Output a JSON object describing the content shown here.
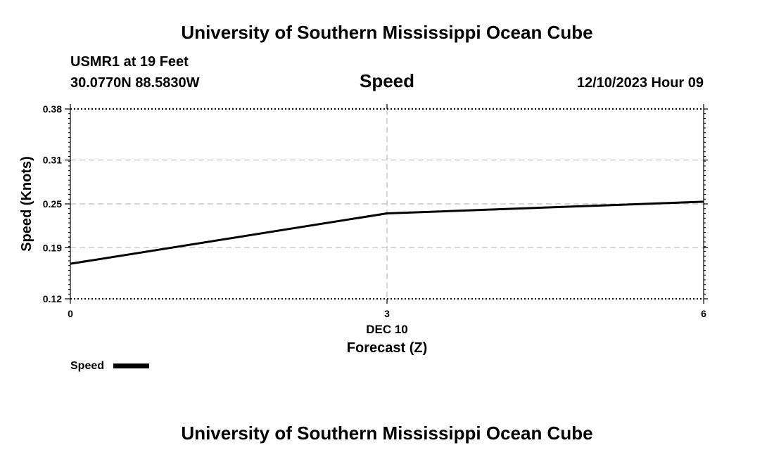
{
  "header": {
    "title": "University of Southern Mississippi Ocean Cube",
    "station": "USMR1 at 19 Feet",
    "location": "30.0770N  88.5830W",
    "plot_title": "Speed",
    "timestamp": "12/10/2023 Hour 09"
  },
  "footer": {
    "title": "University of Southern Mississippi Ocean Cube"
  },
  "chart_data": {
    "type": "line",
    "title": "Speed",
    "xlabel": "Forecast (Z)",
    "xsublabel": "DEC 10",
    "ylabel": "Speed (Knots)",
    "xlim": [
      0,
      6
    ],
    "ylim": [
      0.12,
      0.38
    ],
    "xticks": [
      0,
      3,
      6
    ],
    "xtick_labels": [
      "0",
      "3",
      "6"
    ],
    "yticks": [
      0.12,
      0.19,
      0.25,
      0.31,
      0.38
    ],
    "ytick_labels": [
      "0.12",
      "0.19",
      "0.25",
      "0.31",
      "0.38"
    ],
    "grid": true,
    "legend": "bottom-left",
    "series": [
      {
        "name": "Speed",
        "color": "#000000",
        "x": [
          0,
          3,
          6
        ],
        "y": [
          0.168,
          0.237,
          0.253
        ]
      }
    ]
  }
}
